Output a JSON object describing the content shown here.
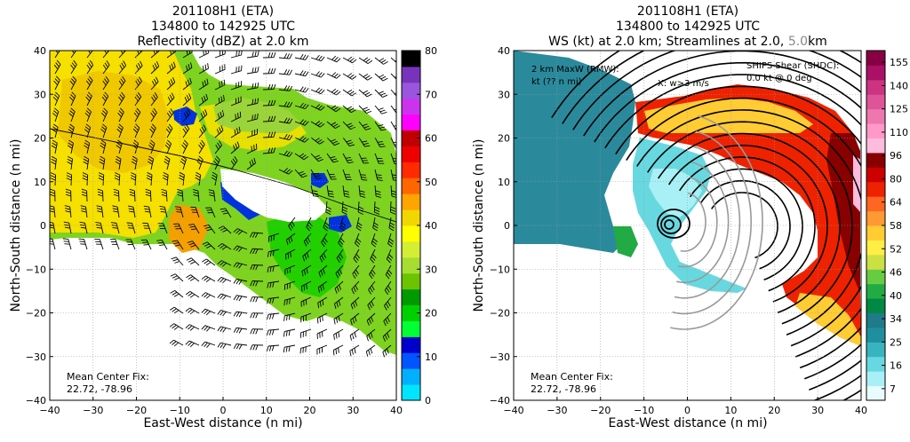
{
  "chart_data": [
    {
      "type": "heatmap",
      "title": [
        "201108H1 (ETA)",
        "134800 to 142925 UTC",
        "Reflectivity (dBZ) at 2.0 km"
      ],
      "xlabel": "East-West distance (n mi)",
      "ylabel": "North-South distance (n mi)",
      "xlim": [
        -40,
        40
      ],
      "ylim": [
        -40,
        40
      ],
      "xticks": [
        -40,
        -30,
        -20,
        -10,
        0,
        10,
        20,
        30,
        40
      ],
      "yticks": [
        -40,
        -30,
        -20,
        -10,
        0,
        10,
        20,
        30,
        40
      ],
      "grid": true,
      "overlay": "wind barbs",
      "colorbar": {
        "ticks": [
          0,
          10,
          20,
          30,
          40,
          50,
          60,
          70,
          80
        ],
        "colors": [
          "#00e5ff",
          "#00b0ff",
          "#0055ff",
          "#0000cc",
          "#00ff33",
          "#00d000",
          "#009a00",
          "#6cc400",
          "#a6dd33",
          "#d4ee33",
          "#ffff00",
          "#f2d600",
          "#ffa500",
          "#ff6600",
          "#ff2a00",
          "#ee0000",
          "#c00000",
          "#ff00ff",
          "#cc33ee",
          "#9955dd",
          "#7733bb",
          "#000000"
        ]
      },
      "annotation": [
        "Mean Center Fix:",
        "22.72, -78.96"
      ]
    },
    {
      "type": "heatmap",
      "title": [
        "201108H1 (ETA)",
        "134800 to 142925 UTC",
        "WS (kt) at 2.0 km; Streamlines at 2.0, ",
        "5.0",
        "km"
      ],
      "xlabel": "East-West distance (n mi)",
      "ylabel": "North-South distance (n mi)",
      "xlim": [
        -40,
        40
      ],
      "ylim": [
        -40,
        40
      ],
      "xticks": [
        -40,
        -30,
        -20,
        -10,
        0,
        10,
        20,
        30,
        40
      ],
      "yticks": [
        -40,
        -30,
        -20,
        -10,
        0,
        10,
        20,
        30,
        40
      ],
      "grid": true,
      "overlay": "streamlines",
      "colorbar": {
        "ticks": [
          7,
          16,
          25,
          34,
          40,
          46,
          52,
          58,
          64,
          80,
          96,
          110,
          125,
          140,
          155
        ],
        "colors": [
          "#e8fbff",
          "#a8f0f5",
          "#68d8e0",
          "#38b4c0",
          "#1f8f9f",
          "#1f7a8a",
          "#008844",
          "#22aa44",
          "#66cc44",
          "#cce044",
          "#ffee44",
          "#ffcc33",
          "#ff9933",
          "#ff6622",
          "#ee2200",
          "#cc0000",
          "#880000",
          "#ffbbdd",
          "#ff99c8",
          "#ee77b0",
          "#dd5598",
          "#cc3380",
          "#aa1166",
          "#880044"
        ]
      },
      "annotation": [
        "Mean Center Fix:",
        "22.72, -78.96"
      ],
      "legend_text": [
        "2 km MaxW (RMW):",
        "kt (?? n mi)",
        "X: w>3 m/s"
      ],
      "shear_text": [
        "SHIPS Shear (SHDC):",
        "0.0 kt @ 0 deg"
      ],
      "shear_color": "#008800"
    }
  ]
}
